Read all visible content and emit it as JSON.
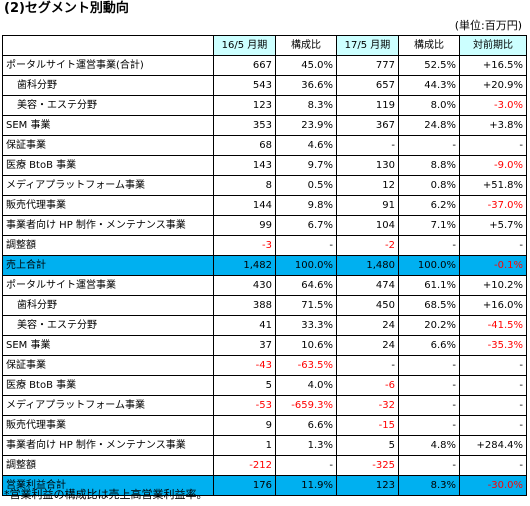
{
  "title": "(2)セグメント別動向",
  "unit": "(単位:百万円)",
  "footnote": "*営業利益の構成比は売上高営業利益率。",
  "headers": [
    "",
    "16/5 月期",
    "構成比",
    "17/5 月期",
    "構成比",
    "対前期比"
  ],
  "rows": [
    {
      "label": "ポータルサイト運営事業(合計)",
      "cells": [
        "667",
        "45.0%",
        "777",
        "52.5%",
        "+16.5%"
      ]
    },
    {
      "label": "歯科分野",
      "cells": [
        "543",
        "36.6%",
        "657",
        "44.3%",
        "+20.9%"
      ]
    },
    {
      "label": "美容・エステ分野",
      "cells": [
        "123",
        "8.3%",
        "119",
        "8.0%",
        "-3.0%"
      ]
    },
    {
      "label": "SEM 事業",
      "cells": [
        "353",
        "23.9%",
        "367",
        "24.8%",
        "+3.8%"
      ]
    },
    {
      "label": "保証事業",
      "cells": [
        "68",
        "4.6%",
        "-",
        "-",
        "-"
      ]
    },
    {
      "label": "医療 BtoB 事業",
      "cells": [
        "143",
        "9.7%",
        "130",
        "8.8%",
        "-9.0%"
      ]
    },
    {
      "label": "メディアプラットフォーム事業",
      "cells": [
        "8",
        "0.5%",
        "12",
        "0.8%",
        "+51.8%"
      ]
    },
    {
      "label": "販売代理事業",
      "cells": [
        "144",
        "9.8%",
        "91",
        "6.2%",
        "-37.0%"
      ]
    },
    {
      "label": "事業者向け HP 制作・メンテナンス事業",
      "cells": [
        "99",
        "6.7%",
        "104",
        "7.1%",
        "+5.7%"
      ]
    },
    {
      "label": "調整額",
      "cells": [
        "-3",
        "-",
        "-2",
        "-",
        "-"
      ]
    },
    {
      "label": "売上合計",
      "cells": [
        "1,482",
        "100.0%",
        "1,480",
        "100.0%",
        "-0.1%"
      ]
    },
    {
      "label": "ポータルサイト運営事業",
      "cells": [
        "430",
        "64.6%",
        "474",
        "61.1%",
        "+10.2%"
      ]
    },
    {
      "label": "歯科分野",
      "cells": [
        "388",
        "71.5%",
        "450",
        "68.5%",
        "+16.0%"
      ]
    },
    {
      "label": "美容・エステ分野",
      "cells": [
        "41",
        "33.3%",
        "24",
        "20.2%",
        "-41.5%"
      ]
    },
    {
      "label": "SEM 事業",
      "cells": [
        "37",
        "10.6%",
        "24",
        "6.6%",
        "-35.3%"
      ]
    },
    {
      "label": "保証事業",
      "cells": [
        "-43",
        "-63.5%",
        "-",
        "-",
        "-"
      ]
    },
    {
      "label": "医療 BtoB 事業",
      "cells": [
        "5",
        "4.0%",
        "-6",
        "-",
        "-"
      ]
    },
    {
      "label": "メディアプラットフォーム事業",
      "cells": [
        "-53",
        "-659.3%",
        "-32",
        "-",
        "-"
      ]
    },
    {
      "label": "販売代理事業",
      "cells": [
        "9",
        "6.6%",
        "-15",
        "-",
        "-"
      ]
    },
    {
      "label": "事業者向け HP 制作・メンテナンス事業",
      "cells": [
        "1",
        "1.3%",
        "5",
        "4.8%",
        "+284.4%"
      ]
    },
    {
      "label": "調整額",
      "cells": [
        "-212",
        "-",
        "-325",
        "-",
        "-"
      ]
    },
    {
      "label": "営業利益合計",
      "cells": [
        "176",
        "11.9%",
        "123",
        "8.3%",
        "-30.0%"
      ]
    }
  ],
  "colors": {
    "header_bg": "#ccffff",
    "total_bg": "#00b0f0",
    "negative": "#ff0000"
  }
}
